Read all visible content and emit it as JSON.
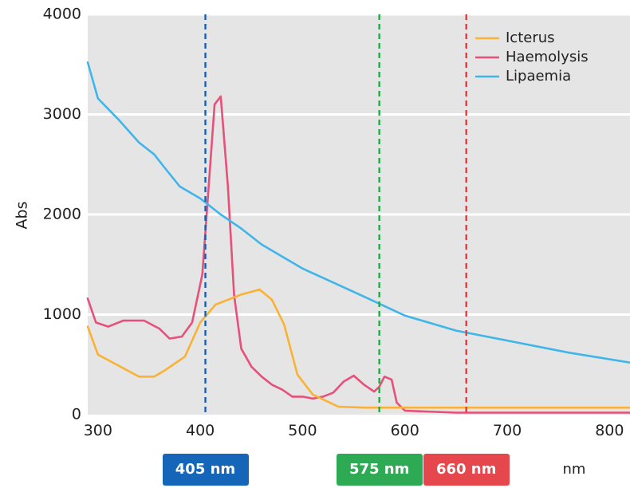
{
  "chart_data": {
    "type": "line",
    "ylabel": "Abs",
    "xlim": [
      290,
      820
    ],
    "ylim": [
      0,
      4000
    ],
    "x_ticks": [
      300,
      400,
      500,
      600,
      700,
      800
    ],
    "x_tick_labels": [
      "300",
      "400",
      "500",
      "600",
      "700",
      "800"
    ],
    "y_ticks": [
      0,
      1000,
      2000,
      3000,
      4000
    ],
    "y_tick_labels": [
      "0",
      "1000",
      "2000",
      "3000",
      "4000"
    ],
    "grid": "horizontal",
    "legend_position": "top-right",
    "series": [
      {
        "name": "Icterus",
        "color": "#f9b233",
        "x": [
          290,
          300,
          340,
          355,
          365,
          385,
          400,
          415,
          440,
          458,
          470,
          482,
          495,
          510,
          535,
          560,
          600,
          650,
          700,
          760,
          820
        ],
        "y": [
          880,
          600,
          380,
          380,
          440,
          580,
          920,
          1100,
          1200,
          1250,
          1150,
          900,
          400,
          200,
          80,
          70,
          70,
          70,
          70,
          70,
          70
        ]
      },
      {
        "name": "Haemolysis",
        "color": "#e6507a",
        "x": [
          290,
          298,
          310,
          325,
          345,
          360,
          370,
          382,
          392,
          402,
          414,
          420,
          427,
          433,
          440,
          450,
          460,
          470,
          480,
          490,
          500,
          510,
          520,
          530,
          540,
          550,
          560,
          570,
          575,
          580,
          587,
          592,
          600,
          650,
          700,
          760,
          820
        ],
        "y": [
          1160,
          920,
          880,
          940,
          940,
          860,
          760,
          780,
          920,
          1400,
          3100,
          3180,
          2280,
          1200,
          660,
          480,
          380,
          300,
          250,
          180,
          180,
          160,
          180,
          220,
          330,
          390,
          300,
          230,
          280,
          380,
          350,
          120,
          40,
          20,
          20,
          20,
          20
        ]
      },
      {
        "name": "Lipaemia",
        "color": "#3fb5ea",
        "x": [
          290,
          300,
          320,
          340,
          355,
          365,
          380,
          400,
          420,
          440,
          460,
          480,
          500,
          530,
          560,
          600,
          650,
          700,
          760,
          820
        ],
        "y": [
          3520,
          3160,
          2950,
          2720,
          2600,
          2470,
          2280,
          2160,
          2000,
          1860,
          1700,
          1580,
          1460,
          1320,
          1180,
          990,
          840,
          740,
          620,
          520
        ]
      }
    ],
    "markers": [
      {
        "x": 405,
        "label": "405 nm",
        "color": "#1a5fa8",
        "badge_color": "#1565b8"
      },
      {
        "x": 575,
        "label": "575 nm",
        "color": "#26a84a",
        "badge_color": "#2eaa55"
      },
      {
        "x": 660,
        "label": "660 nm",
        "color": "#e8383d",
        "badge_color": "#e5474d"
      }
    ],
    "x_unit_label": "nm"
  }
}
